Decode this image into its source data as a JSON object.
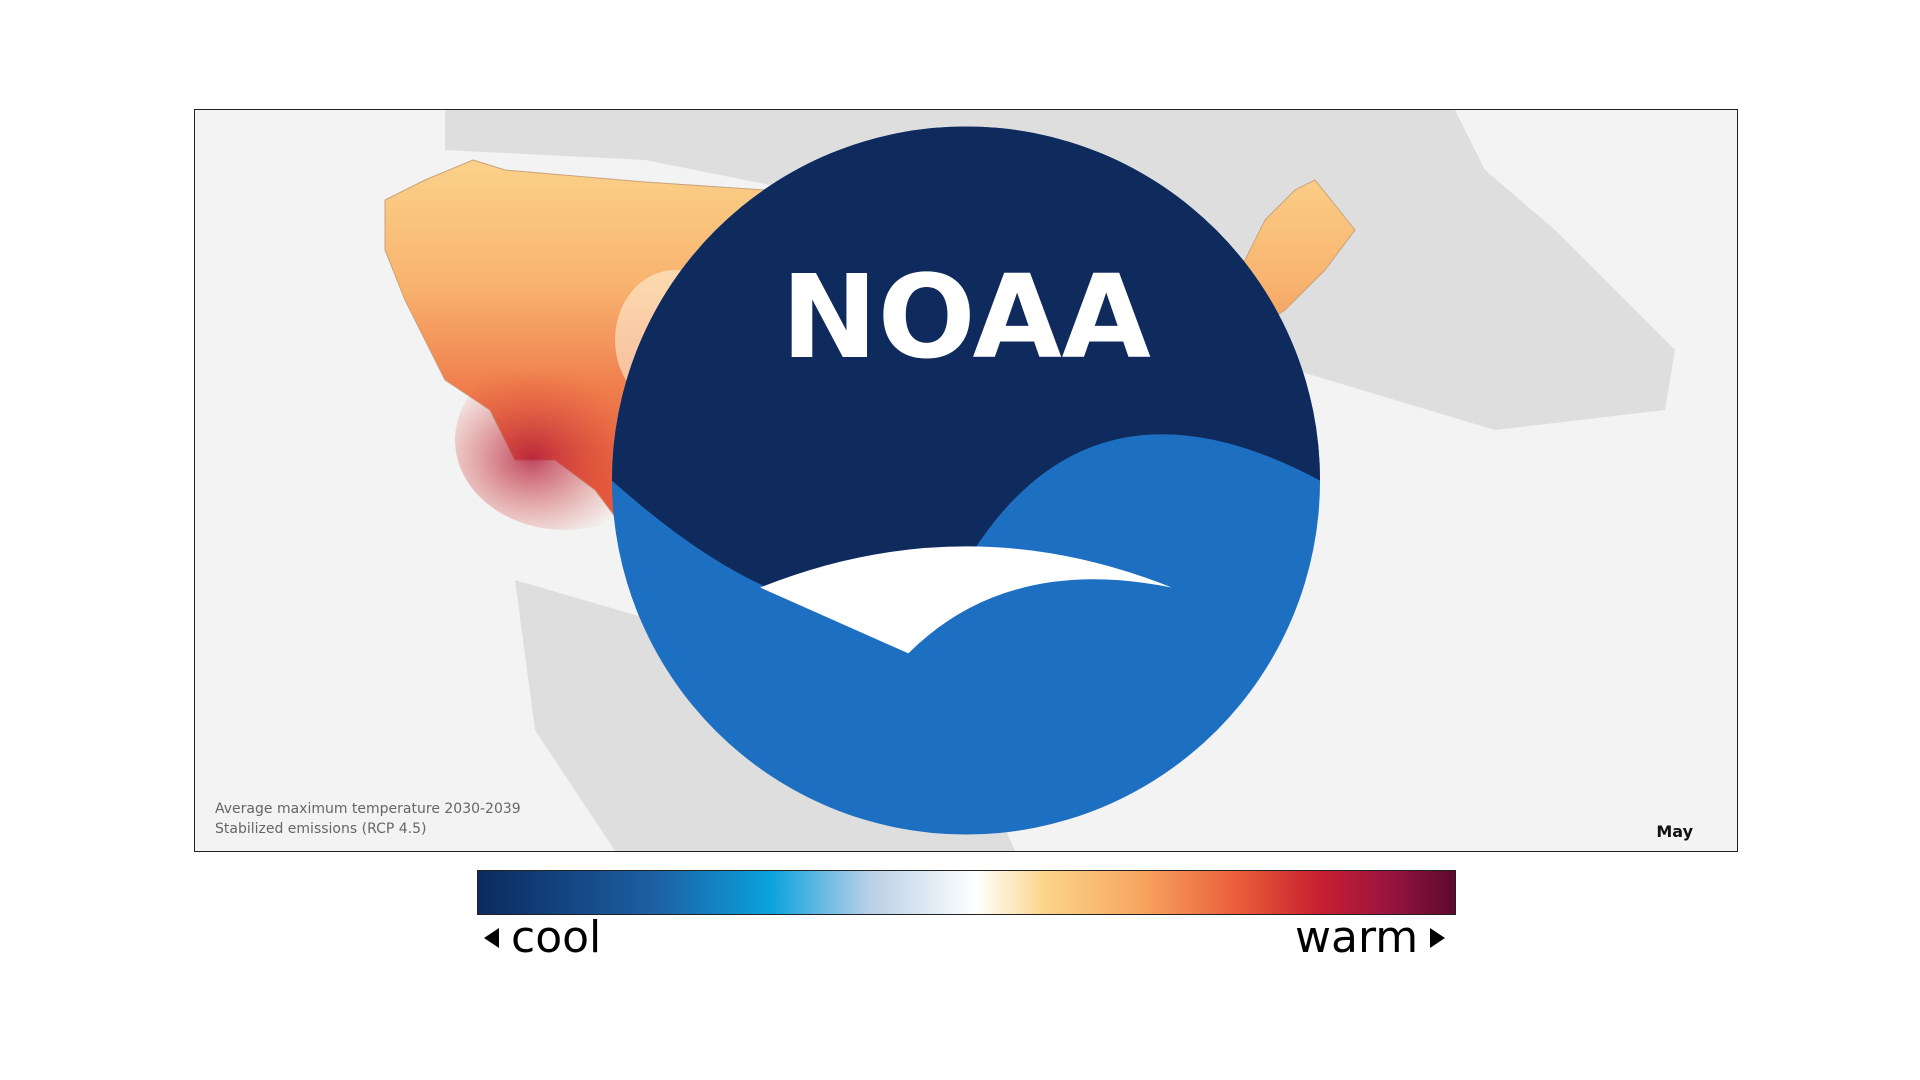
{
  "map": {
    "caption_line1": "Average maximum temperature 2030-2039",
    "caption_line2": "Stabilized emissions (RCP 4.5)",
    "month": "May",
    "logo_text": "NOAA"
  },
  "legend": {
    "cool_label": "cool",
    "warm_label": "warm",
    "colors": [
      "#0b2a5e",
      "#1d5fa3",
      "#0aa2dd",
      "#b8cfe6",
      "#ffffff",
      "#fbd58a",
      "#f7a45e",
      "#ea5b3a",
      "#c8202f",
      "#9c1440",
      "#5c0a2c"
    ]
  },
  "colors": {
    "land_background": "#dedede",
    "water": "#f3f3f3",
    "noaa_blue": "#1d6fc1",
    "noaa_navy": "#0f2a5c"
  }
}
